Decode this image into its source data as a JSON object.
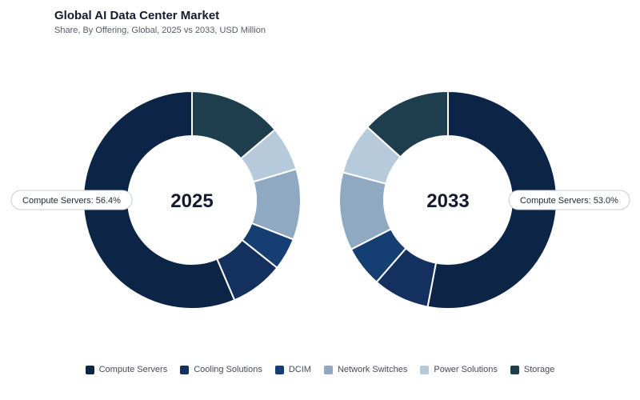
{
  "header": {
    "title": "Global AI Data Center Market",
    "subtitle": "Share, By Offering, Global, 2025 vs 2033, USD Million"
  },
  "colors": {
    "Compute Servers": "#0c2546",
    "Cooling Solutions": "#13305f",
    "DCIM": "#153e72",
    "Network Switches": "#8fa9c3",
    "Power Solutions": "#b6cadb",
    "Storage": "#1e3e4e"
  },
  "chart_data": [
    {
      "type": "pie",
      "center_label": "2025",
      "categories": [
        "Compute Servers",
        "Cooling Solutions",
        "DCIM",
        "Network Switches",
        "Power Solutions",
        "Storage"
      ],
      "values": [
        56.4,
        7.9,
        4.8,
        10.5,
        6.6,
        13.8
      ],
      "annotation": "Compute Servers: 56.4%"
    },
    {
      "type": "pie",
      "center_label": "2033",
      "categories": [
        "Compute Servers",
        "Cooling Solutions",
        "DCIM",
        "Network Switches",
        "Power Solutions",
        "Storage"
      ],
      "values": [
        53.0,
        8.4,
        6.1,
        11.6,
        7.6,
        13.3
      ],
      "annotation": "Compute Servers: 53.0%"
    }
  ],
  "legend": [
    "Compute Servers",
    "Cooling Solutions",
    "DCIM",
    "Network Switches",
    "Power Solutions",
    "Storage"
  ]
}
